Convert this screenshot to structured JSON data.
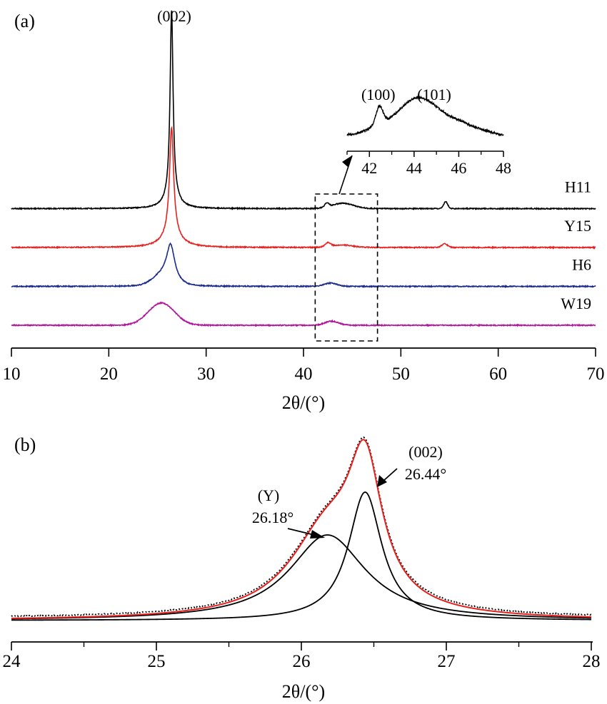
{
  "chart_data": [
    {
      "panel_label": "(a)",
      "type": "line",
      "xlabel": "2θ/(°)",
      "xlim": [
        10,
        70
      ],
      "xticks": [
        10,
        20,
        30,
        40,
        50,
        60,
        70
      ],
      "yaxis": "none",
      "peak_label": "(002)",
      "series": [
        {
          "name": "H11",
          "color": "#000000",
          "offset": 4,
          "peaks": [
            {
              "x": 26.45,
              "h": 4.55,
              "w": 0.18,
              "shape": "lorentz"
            },
            {
              "x": 26.45,
              "h": 0.35,
              "w": 0.7,
              "shape": "lorentz"
            },
            {
              "x": 42.4,
              "h": 0.1,
              "w": 0.3,
              "shape": "gauss"
            },
            {
              "x": 44.0,
              "h": 0.13,
              "w": 1.6,
              "shape": "gauss"
            },
            {
              "x": 54.6,
              "h": 0.17,
              "w": 0.3,
              "shape": "gauss"
            }
          ]
        },
        {
          "name": "Y15",
          "color": "#e8201e",
          "offset": 3,
          "peaks": [
            {
              "x": 26.45,
              "h": 2.6,
              "w": 0.25,
              "shape": "lorentz"
            },
            {
              "x": 26.45,
              "h": 0.35,
              "w": 1.0,
              "shape": "lorentz"
            },
            {
              "x": 42.5,
              "h": 0.1,
              "w": 0.4,
              "shape": "gauss"
            },
            {
              "x": 44.0,
              "h": 0.06,
              "w": 1.5,
              "shape": "gauss"
            },
            {
              "x": 54.5,
              "h": 0.09,
              "w": 0.4,
              "shape": "gauss"
            }
          ]
        },
        {
          "name": "H6",
          "color": "#1a2a8c",
          "offset": 2,
          "peaks": [
            {
              "x": 26.35,
              "h": 0.85,
              "w": 0.5,
              "shape": "lorentz"
            },
            {
              "x": 25.6,
              "h": 0.25,
              "w": 1.5,
              "shape": "gauss"
            },
            {
              "x": 42.8,
              "h": 0.08,
              "w": 0.9,
              "shape": "gauss"
            }
          ]
        },
        {
          "name": "W19",
          "color": "#b0159a",
          "offset": 1,
          "peaks": [
            {
              "x": 25.4,
              "h": 0.55,
              "w": 1.9,
              "shape": "gauss"
            },
            {
              "x": 42.9,
              "h": 0.1,
              "w": 1.0,
              "shape": "gauss"
            }
          ]
        }
      ],
      "box_xrange": [
        41.2,
        47.6
      ],
      "inset": {
        "xlim": [
          41,
          48
        ],
        "xticks": [
          42,
          44,
          46,
          48
        ],
        "labels": [
          "(100)",
          "(101)"
        ],
        "label_x": [
          42.4,
          44.9
        ]
      }
    },
    {
      "panel_label": "(b)",
      "type": "line",
      "xlabel": "2θ/(°)",
      "xlim": [
        24,
        28
      ],
      "xticks": [
        24,
        25,
        26,
        27,
        28
      ],
      "yaxis": "none",
      "components": [
        {
          "center": 26.18,
          "height": 0.6,
          "hwhm": 0.32,
          "color": "#000000"
        },
        {
          "center": 26.44,
          "height": 0.9,
          "hwhm": 0.14,
          "color": "#000000"
        }
      ],
      "fit_color": "#e8201e",
      "annotations": [
        {
          "title": "(Y)",
          "value": "26.18°"
        },
        {
          "title": "(002)",
          "value": "26.44°"
        }
      ]
    }
  ]
}
